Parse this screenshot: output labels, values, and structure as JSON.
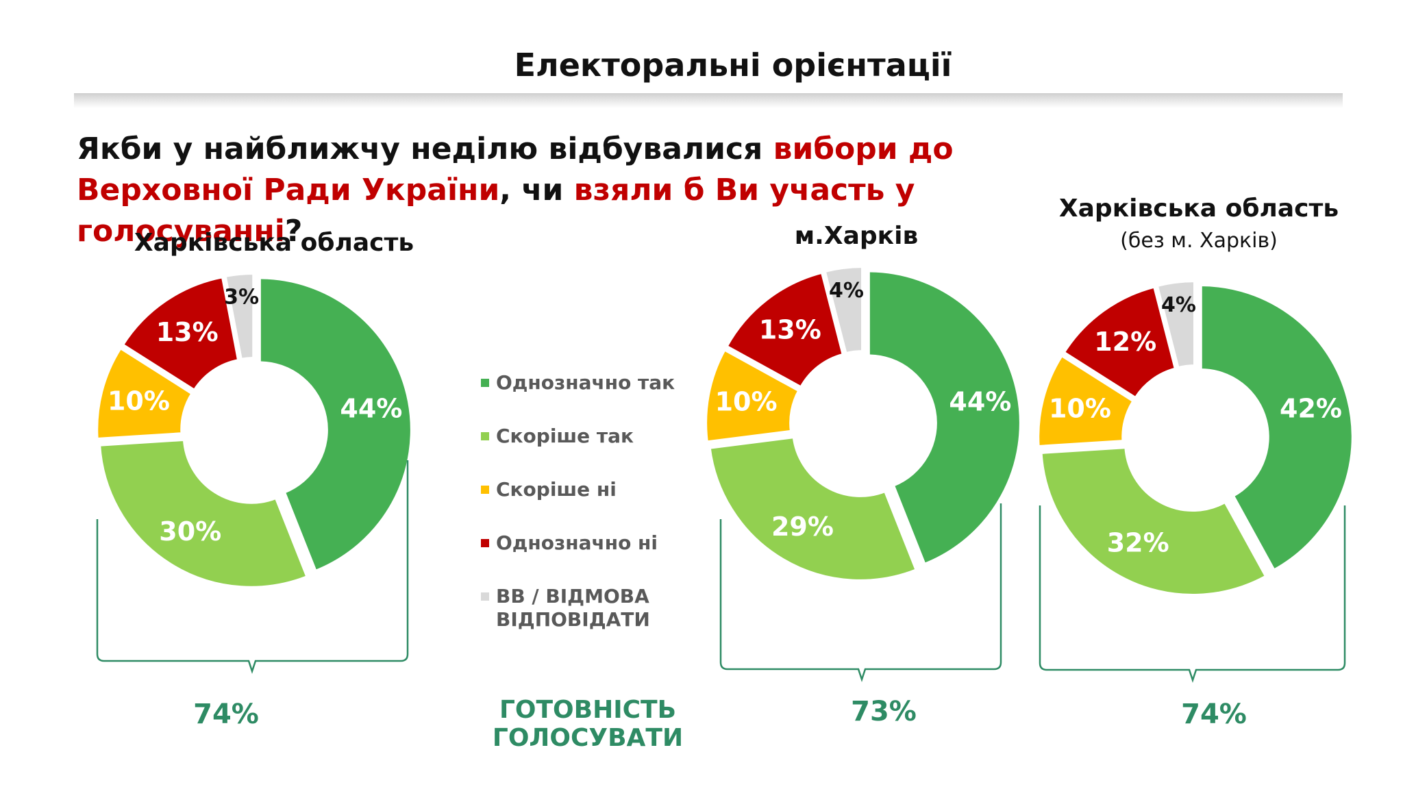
{
  "page": {
    "title": "Електоральні орієнтації",
    "question": {
      "part1": "Якби у найближчу неділю відбувалися ",
      "part2": "вибори до Верховної Ради України",
      "part3": ", чи ",
      "part4": "взяли б Ви участь у голосуванні",
      "part5": "?"
    }
  },
  "colors": {
    "definitely_yes": "#45b053",
    "rather_yes": "#92d050",
    "rather_no": "#ffc000",
    "definitely_no": "#c00000",
    "hard_to_say": "#d9d9d9",
    "accent": "#2e8b64"
  },
  "legend": {
    "items": [
      {
        "label": "Однозначно так",
        "color": "#45b053"
      },
      {
        "label": "Скоріше так",
        "color": "#92d050"
      },
      {
        "label": "Скоріше ні",
        "color": "#ffc000"
      },
      {
        "label": "Однозначно ні",
        "color": "#c00000"
      },
      {
        "label": "ВВ / ВІДМОВА ВІДПОВІДАТИ",
        "color": "#d9d9d9"
      }
    ]
  },
  "ready_label": "ГОТОВНІСТЬ ГОЛОСУВАТИ",
  "chart_data": [
    {
      "type": "pie",
      "title": "Харківська область",
      "subtitle": "",
      "categories": [
        "Однозначно так",
        "Скоріше так",
        "Скоріше ні",
        "Однозначно ні",
        "ВВ / ВІДМОВА ВІДПОВІДАТИ"
      ],
      "values": [
        44,
        30,
        10,
        13,
        3
      ],
      "labels": [
        "44%",
        "30%",
        "10%",
        "13%",
        "3%"
      ],
      "total_label": "74%"
    },
    {
      "type": "pie",
      "title": "м.Харків",
      "subtitle": "",
      "categories": [
        "Однозначно так",
        "Скоріше так",
        "Скоріше ні",
        "Однозначно ні",
        "ВВ / ВІДМОВА ВІДПОВІДАТИ"
      ],
      "values": [
        44,
        29,
        10,
        13,
        4
      ],
      "labels": [
        "44%",
        "29%",
        "10%",
        "13%",
        "4%"
      ],
      "total_label": "73%"
    },
    {
      "type": "pie",
      "title": "Харківська область",
      "subtitle": "(без м. Харків)",
      "categories": [
        "Однозначно так",
        "Скоріше так",
        "Скоріше ні",
        "Однозначно ні",
        "ВВ / ВІДМОВА ВІДПОВІДАТИ"
      ],
      "values": [
        42,
        32,
        10,
        12,
        4
      ],
      "labels": [
        "42%",
        "32%",
        "10%",
        "12%",
        "4%"
      ],
      "total_label": "74%"
    }
  ]
}
